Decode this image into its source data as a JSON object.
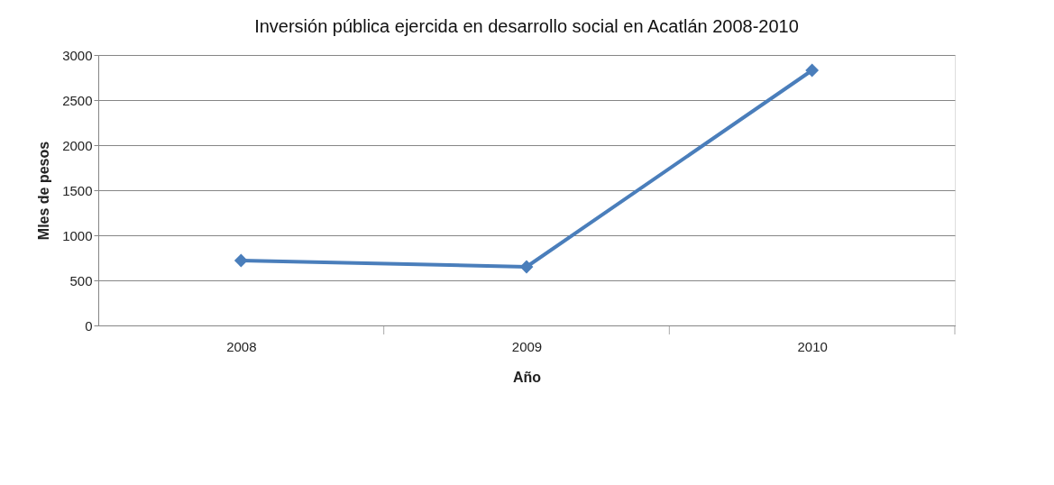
{
  "chart_data": {
    "type": "line",
    "title": "Inversión pública ejercida en desarrollo social en Acatlán 2008-2010",
    "xlabel": "Año",
    "ylabel": "Mles de pesos",
    "categories": [
      "2008",
      "2009",
      "2010"
    ],
    "series": [
      {
        "color": "#4a7ebb",
        "values": [
          720,
          650,
          2830
        ]
      }
    ],
    "ylim": [
      0,
      3000
    ],
    "yticks": [
      0,
      500,
      1000,
      1500,
      2000,
      2500,
      3000
    ],
    "grid": "y",
    "marker": "diamond",
    "line_style": "solid"
  }
}
